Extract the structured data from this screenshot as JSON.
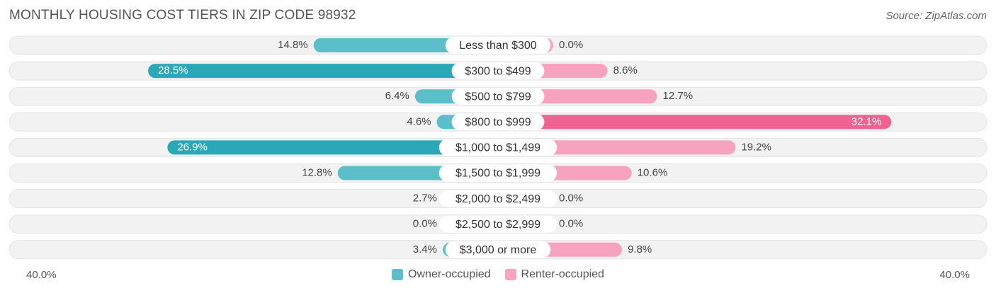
{
  "header": {
    "title": "MONTHLY HOUSING COST TIERS IN ZIP CODE 98932",
    "source": "Source: ZipAtlas.com"
  },
  "axis": {
    "left_label": "40.0%",
    "right_label": "40.0%"
  },
  "legend": {
    "owner_label": "Owner-occupied",
    "renter_label": "Renter-occupied"
  },
  "colors": {
    "owner": "#5bbfca",
    "owner_strong": "#2aa8b8",
    "renter": "#f7a3bf",
    "renter_strong": "#f06292",
    "row_bg": "#f2f2f2"
  },
  "chart_data": {
    "type": "bar",
    "orientation": "horizontal-diverging",
    "title": "MONTHLY HOUSING COST TIERS IN ZIP CODE 98932",
    "xlim": [
      -40,
      40
    ],
    "categories": [
      "Less than $300",
      "$300 to $499",
      "$500 to $799",
      "$800 to $999",
      "$1,000 to $1,499",
      "$1,500 to $1,999",
      "$2,000 to $2,499",
      "$2,500 to $2,999",
      "$3,000 or more"
    ],
    "series": [
      {
        "name": "Owner-occupied",
        "values": [
          14.8,
          28.5,
          6.4,
          4.6,
          26.9,
          12.8,
          2.7,
          0.0,
          3.4
        ],
        "labels": [
          "14.8%",
          "28.5%",
          "6.4%",
          "4.6%",
          "26.9%",
          "12.8%",
          "2.7%",
          "0.0%",
          "3.4%"
        ]
      },
      {
        "name": "Renter-occupied",
        "values": [
          0.0,
          8.6,
          12.7,
          32.1,
          19.2,
          10.6,
          0.0,
          0.0,
          9.8
        ],
        "labels": [
          "0.0%",
          "8.6%",
          "12.7%",
          "32.1%",
          "19.2%",
          "10.6%",
          "0.0%",
          "0.0%",
          "9.8%"
        ]
      }
    ],
    "legend_position": "bottom-center"
  }
}
